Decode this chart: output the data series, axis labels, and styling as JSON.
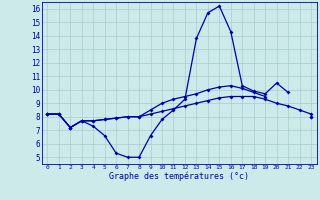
{
  "title": "Graphe des températures (°c)",
  "bg_color": "#cceaea",
  "grid_color": "#aacccc",
  "line_color": "#0000aa",
  "markersize": 2.0,
  "linewidth": 0.9,
  "xlim": [
    -0.5,
    23.5
  ],
  "ylim": [
    4.5,
    16.5
  ],
  "yticks": [
    5,
    6,
    7,
    8,
    9,
    10,
    11,
    12,
    13,
    14,
    15,
    16
  ],
  "xticks": [
    0,
    1,
    2,
    3,
    4,
    5,
    6,
    7,
    8,
    9,
    10,
    11,
    12,
    13,
    14,
    15,
    16,
    17,
    18,
    19,
    20,
    21,
    22,
    23
  ],
  "series1": [
    8.2,
    8.2,
    7.2,
    7.7,
    7.3,
    6.6,
    5.3,
    5.0,
    5.0,
    6.6,
    7.8,
    8.5,
    9.3,
    13.8,
    15.7,
    16.2,
    14.3,
    10.3,
    9.9,
    9.7,
    10.5,
    9.8,
    null,
    8.0
  ],
  "series2": [
    8.2,
    8.2,
    7.2,
    7.7,
    7.7,
    7.8,
    7.9,
    8.0,
    8.0,
    8.2,
    8.4,
    8.6,
    8.8,
    9.0,
    9.2,
    9.4,
    9.5,
    9.5,
    9.5,
    9.3,
    9.0,
    8.8,
    8.5,
    8.2
  ],
  "series3": [
    8.2,
    8.2,
    7.2,
    7.7,
    7.7,
    7.8,
    7.9,
    8.0,
    8.0,
    8.5,
    9.0,
    9.3,
    9.5,
    9.7,
    10.0,
    10.2,
    10.3,
    10.1,
    9.8,
    9.5,
    null,
    null,
    null,
    8.0
  ]
}
